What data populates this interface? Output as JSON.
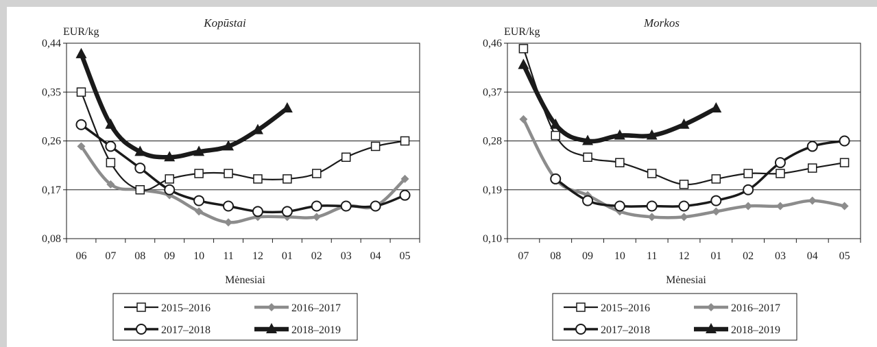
{
  "chart_data": [
    {
      "type": "line",
      "title": "Kopūstai",
      "ylabel": "EUR/kg",
      "xlabel": "Mėnesiai",
      "ylim": [
        0.08,
        0.44
      ],
      "yticks": [
        "0,08",
        "0,17",
        "0,26",
        "0,35",
        "0,44"
      ],
      "categories": [
        "06",
        "07",
        "08",
        "09",
        "10",
        "11",
        "12",
        "01",
        "02",
        "03",
        "04",
        "05"
      ],
      "grid": "horizontal",
      "series": [
        {
          "name": "2015–2016",
          "color": "#1a1a1a",
          "marker": "square",
          "values": [
            0.35,
            0.22,
            0.17,
            0.19,
            0.2,
            0.2,
            0.19,
            0.19,
            0.2,
            0.23,
            0.25,
            0.26
          ]
        },
        {
          "name": "2016–2017",
          "color": "#8c8c8c",
          "marker": "diamond",
          "values": [
            0.25,
            0.18,
            0.17,
            0.16,
            0.13,
            0.11,
            0.12,
            0.12,
            0.12,
            0.14,
            0.14,
            0.19
          ]
        },
        {
          "name": "2017–2018",
          "color": "#1a1a1a",
          "marker": "circle",
          "values": [
            0.29,
            0.25,
            0.21,
            0.17,
            0.15,
            0.14,
            0.13,
            0.13,
            0.14,
            0.14,
            0.14,
            0.16
          ]
        },
        {
          "name": "2018–2019",
          "color": "#1a1a1a",
          "marker": "triangle",
          "values": [
            0.42,
            0.29,
            0.24,
            0.23,
            0.24,
            0.25,
            0.28,
            0.32,
            null,
            null,
            null,
            null
          ]
        }
      ],
      "legend": "bottom"
    },
    {
      "type": "line",
      "title": "Morkos",
      "ylabel": "EUR/kg",
      "xlabel": "Mėnesiai",
      "ylim": [
        0.1,
        0.46
      ],
      "yticks": [
        "0,10",
        "0,19",
        "0,28",
        "0,37",
        "0,46"
      ],
      "categories": [
        "07",
        "08",
        "09",
        "10",
        "11",
        "12",
        "01",
        "02",
        "03",
        "04",
        "05"
      ],
      "grid": "horizontal",
      "series": [
        {
          "name": "2015–2016",
          "color": "#1a1a1a",
          "marker": "square",
          "values": [
            0.45,
            0.29,
            0.25,
            0.24,
            0.22,
            0.2,
            0.21,
            0.22,
            0.22,
            0.23,
            0.24
          ]
        },
        {
          "name": "2016–2017",
          "color": "#8c8c8c",
          "marker": "diamond",
          "values": [
            0.32,
            0.21,
            0.18,
            0.15,
            0.14,
            0.14,
            0.15,
            0.16,
            0.16,
            0.17,
            0.16
          ]
        },
        {
          "name": "2017–2018",
          "color": "#1a1a1a",
          "marker": "circle",
          "values": [
            null,
            0.21,
            0.17,
            0.16,
            0.16,
            0.16,
            0.17,
            0.19,
            0.24,
            0.27,
            0.28
          ]
        },
        {
          "name": "2018–2019",
          "color": "#1a1a1a",
          "marker": "triangle",
          "values": [
            0.42,
            0.31,
            0.28,
            0.29,
            0.29,
            0.31,
            0.34,
            null,
            null,
            null,
            null
          ]
        }
      ],
      "legend": "bottom"
    }
  ]
}
